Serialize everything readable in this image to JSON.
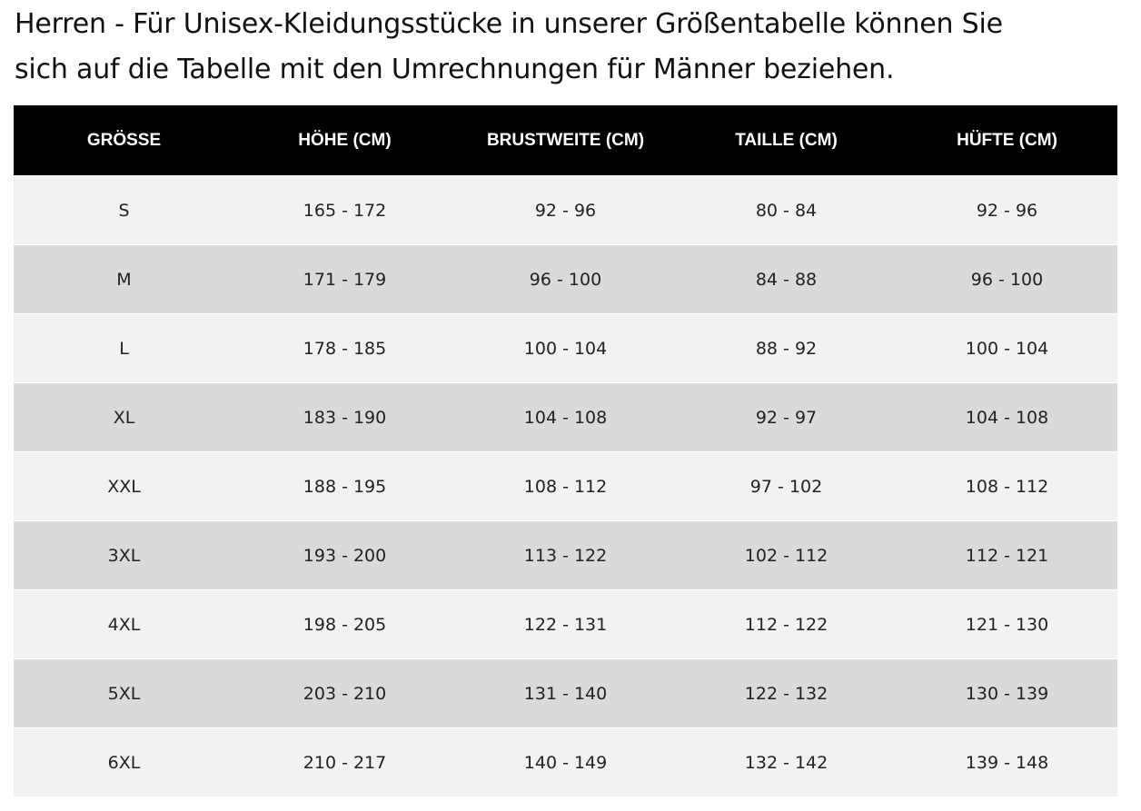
{
  "intro": {
    "line1": "Herren - Für Unisex-Kleidungsstücke in unserer Größentabelle können Sie",
    "line2": "sich auf die Tabelle mit den Umrechnungen für Männer beziehen."
  },
  "table": {
    "headers": [
      "GRÖSSE",
      "HÖHE (CM)",
      "BRUSTWEITE (CM)",
      "TAILLE (CM)",
      "HÜFTE (CM)"
    ],
    "rows": [
      [
        "S",
        "165 - 172",
        "92 - 96",
        "80 - 84",
        "92 - 96"
      ],
      [
        "M",
        "171 - 179",
        "96 - 100",
        "84 - 88",
        "96 - 100"
      ],
      [
        "L",
        "178 - 185",
        "100 - 104",
        "88 - 92",
        "100 - 104"
      ],
      [
        "XL",
        "183 - 190",
        "104 - 108",
        "92 - 97",
        "104 - 108"
      ],
      [
        "XXL",
        "188 - 195",
        "108 - 112",
        "97 - 102",
        "108 - 112"
      ],
      [
        "3XL",
        "193 - 200",
        "113 - 122",
        "102 - 112",
        "112 - 121"
      ],
      [
        "4XL",
        "198 - 205",
        "122 - 131",
        "112 - 122",
        "121 - 130"
      ],
      [
        "5XL",
        "203 - 210",
        "131 - 140",
        "122 - 132",
        "130 - 139"
      ],
      [
        "6XL",
        "210 - 217",
        "140 - 149",
        "132 - 142",
        "139 - 148"
      ]
    ]
  },
  "colors": {
    "header_bg": "#000000",
    "header_text": "#ffffff",
    "row_light": "#f2f2f2",
    "row_dark": "#dadada"
  }
}
